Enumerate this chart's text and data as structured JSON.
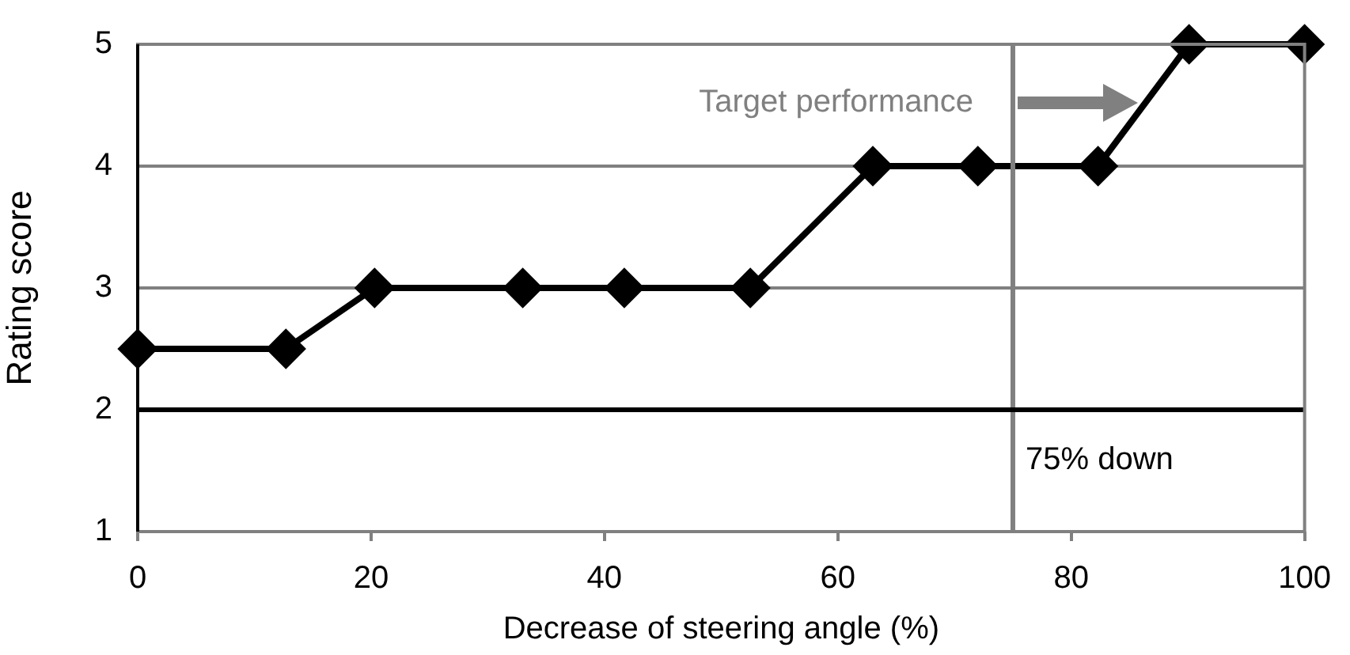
{
  "chart_data": {
    "type": "line",
    "xlabel": "Decrease of steering angle (%)",
    "ylabel": "Rating score",
    "x": [
      0,
      12.7,
      20.3,
      33,
      41.7,
      52.5,
      63,
      72,
      82.3,
      90.1,
      100
    ],
    "series": [
      {
        "color": "#000000",
        "values": [
          2.5,
          2.5,
          3,
          3,
          3,
          3,
          4,
          4,
          4,
          5,
          5
        ]
      }
    ],
    "xlim": [
      0,
      100
    ],
    "xticks": [
      0,
      20,
      40,
      60,
      80,
      100
    ],
    "ylim": [
      1,
      5
    ],
    "yticks": [
      1,
      2,
      3,
      4,
      5
    ],
    "grid": "y",
    "legend": false,
    "marker": "diamond",
    "line_style": "solid",
    "ref_lines": [
      {
        "axis": "x",
        "value": 75,
        "label": "75% down",
        "color": "#808080"
      },
      {
        "axis": "y",
        "value": 2,
        "color": "#000000"
      }
    ],
    "annotations": [
      "Target performance"
    ]
  }
}
